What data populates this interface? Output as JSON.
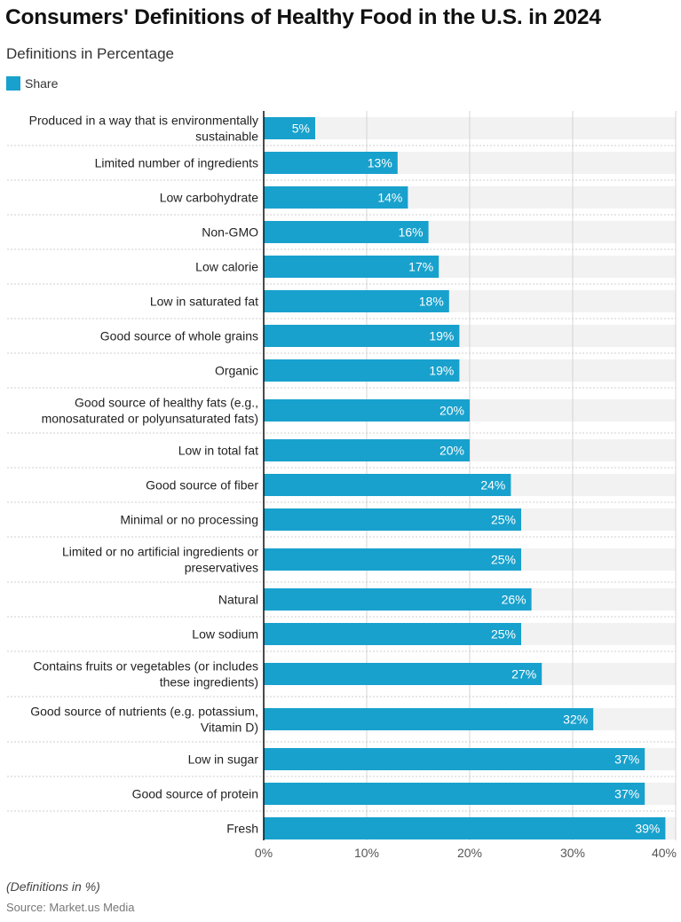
{
  "title": "Consumers' Definitions of Healthy Food in the U.S. in 2024",
  "subtitle": "Definitions in Percentage",
  "note": "(Definitions in %)",
  "source": "Source: Market.us Media",
  "colors": {
    "bar": "#18a1cd",
    "band": "#f2f2f2",
    "grid": "#d4d4d4"
  },
  "chart_data": {
    "type": "bar",
    "orientation": "horizontal",
    "title": "Consumers' Definitions of Healthy Food in the U.S. in 2024",
    "subtitle": "Definitions in Percentage",
    "legend": {
      "position": "top-left",
      "entries": [
        "Share"
      ]
    },
    "categories": [
      "Produced in a way that is environmentally sustainable",
      "Limited number of ingredients",
      "Low carbohydrate",
      "Non-GMO",
      "Low calorie",
      "Low in saturated fat",
      "Good source of whole grains",
      "Organic",
      "Good source of healthy fats (e.g., monosaturated or polyunsaturated fats)",
      "Low in total fat",
      "Good source of fiber",
      "Minimal or no processing",
      "Limited or no artificial ingredients or preservatives",
      "Natural",
      "Low sodium",
      "Contains fruits or vegetables (or includes these ingredients)",
      "Good source of nutrients (e.g. potassium, Vitamin D)",
      "Low in sugar",
      "Good source of protein",
      "Fresh"
    ],
    "label_lines": [
      [
        "Produced in a way that is environmentally",
        "sustainable"
      ],
      [
        "Limited number of ingredients"
      ],
      [
        "Low carbohydrate"
      ],
      [
        "Non-GMO"
      ],
      [
        "Low calorie"
      ],
      [
        "Low in saturated fat"
      ],
      [
        "Good source of whole grains"
      ],
      [
        "Organic"
      ],
      [
        "Good source of healthy fats (e.g.,",
        "monosaturated or polyunsaturated fats)"
      ],
      [
        "Low in total fat"
      ],
      [
        "Good source of fiber"
      ],
      [
        "Minimal or no processing"
      ],
      [
        "Limited or no artificial ingredients or",
        "preservatives"
      ],
      [
        "Natural"
      ],
      [
        "Low sodium"
      ],
      [
        "Contains fruits or vegetables (or includes",
        "these ingredients)"
      ],
      [
        "Good source of nutrients (e.g. potassium,",
        "Vitamin D)"
      ],
      [
        "Low in sugar"
      ],
      [
        "Good source of protein"
      ],
      [
        "Fresh"
      ]
    ],
    "series": [
      {
        "name": "Share",
        "values": [
          5,
          13,
          14,
          16,
          17,
          18,
          19,
          19,
          20,
          20,
          24,
          25,
          25,
          26,
          25,
          27,
          32,
          37,
          37,
          39
        ]
      }
    ],
    "data_labels": [
      "5%",
      "13%",
      "14%",
      "16%",
      "17%",
      "18%",
      "19%",
      "19%",
      "20%",
      "20%",
      "24%",
      "25%",
      "25%",
      "26%",
      "25%",
      "27%",
      "32%",
      "37%",
      "37%",
      "39%"
    ],
    "xlim": [
      0,
      40
    ],
    "xticks": [
      0,
      10,
      20,
      30,
      40
    ],
    "xtick_labels": [
      "0%",
      "10%",
      "20%",
      "30%",
      "40%"
    ],
    "grid": true,
    "xlabel": "",
    "ylabel": ""
  }
}
